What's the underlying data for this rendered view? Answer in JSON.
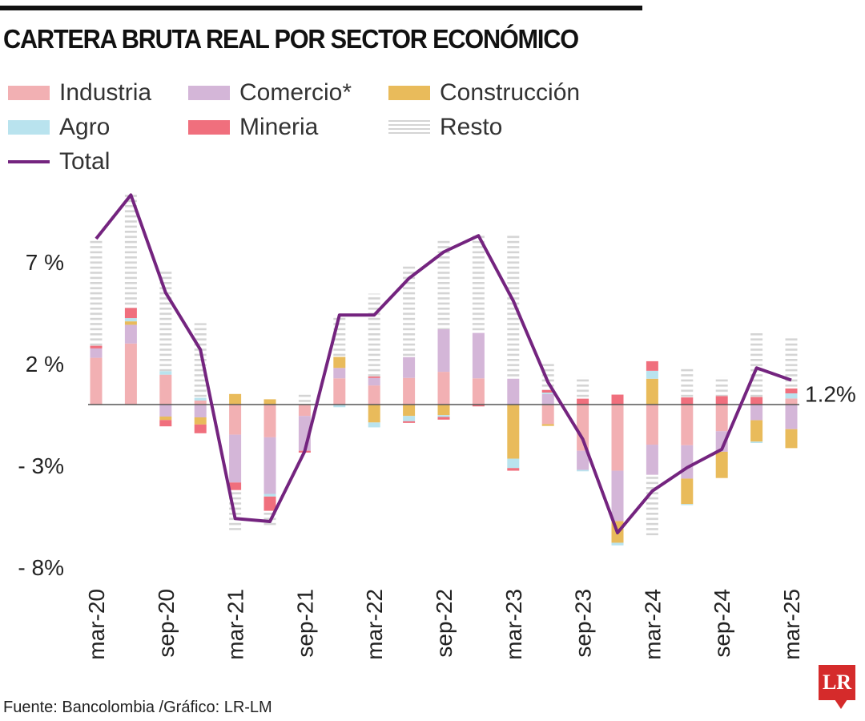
{
  "title": "CARTERA BRUTA REAL POR SECTOR ECONÓMICO",
  "source": "Fuente: Bancolombia /Gráfico: LR-LM",
  "logo_text": "LR",
  "colors": {
    "Industria": "#f2b0b3",
    "Comercio*": "#d4b6d8",
    "Construcción": "#e9bb5b",
    "Agro": "#b9e3ee",
    "Mineria": "#f06f7d",
    "Resto": "#d4d4d4",
    "Total": "#74247f"
  },
  "legend": [
    {
      "label": "Industria",
      "type": "box"
    },
    {
      "label": "Comercio*",
      "type": "box"
    },
    {
      "label": "Construcción",
      "type": "box"
    },
    {
      "label": "Agro",
      "type": "box"
    },
    {
      "label": "Mineria",
      "type": "box"
    },
    {
      "label": "Resto",
      "type": "striped"
    },
    {
      "label": "Total",
      "type": "line"
    }
  ],
  "chart_data": {
    "type": "bar",
    "stacked": true,
    "categories": [
      "mar-20",
      "jun-20",
      "sep-20",
      "dec-20",
      "mar-21",
      "jun-21",
      "sep-21",
      "dec-21",
      "mar-22",
      "jun-22",
      "sep-22",
      "dec-22",
      "mar-23",
      "jun-23",
      "sep-23",
      "dec-23",
      "mar-24",
      "jun-24",
      "sep-24",
      "dec-24",
      "mar-25"
    ],
    "x_tick_labels": [
      "mar-20",
      "sep-20",
      "mar-21",
      "sep-21",
      "mar-22",
      "sep-22",
      "mar-23",
      "sep-23",
      "mar-24",
      "sep-24",
      "mar-25"
    ],
    "y_ticks": [
      {
        "value": 7,
        "label": "7 %"
      },
      {
        "value": 2,
        "label": "2 %"
      },
      {
        "value": -3,
        "label": "- 3%"
      },
      {
        "value": -8,
        "label": "- 8%"
      }
    ],
    "ylim": [
      -8.5,
      10.5
    ],
    "grid": false,
    "legend_position": "top",
    "series": [
      {
        "name": "Industria",
        "values": [
          2.3,
          3.0,
          1.47,
          0.2,
          -1.48,
          -1.61,
          -0.56,
          1.29,
          0.94,
          1.31,
          1.61,
          1.29,
          0,
          -0.96,
          -2.27,
          -3.25,
          -1.97,
          -2.0,
          -1.31,
          0,
          0.3
        ]
      },
      {
        "name": "Comercio*",
        "values": [
          0.46,
          0.92,
          -0.59,
          -0.63,
          -2.35,
          -2.78,
          -1.71,
          0.51,
          0.37,
          1.02,
          2.09,
          2.23,
          1.27,
          0.52,
          -0.94,
          -2.48,
          -1.48,
          -1.64,
          -1.01,
          -0.77,
          -1.21
        ]
      },
      {
        "name": "Construcción",
        "values": [
          0,
          0.17,
          -0.17,
          -0.35,
          0.52,
          0.26,
          0,
          0.54,
          -0.88,
          -0.56,
          -0.52,
          0,
          -2.66,
          -0.09,
          0,
          -1.06,
          1.27,
          -1.25,
          -1.29,
          -1.05,
          -0.93
        ]
      },
      {
        "name": "Agro",
        "values": [
          0,
          0.16,
          0.17,
          0.13,
          0,
          -0.13,
          0,
          -0.13,
          -0.24,
          -0.26,
          -0.09,
          0,
          -0.46,
          0.07,
          -0.07,
          -0.13,
          0.39,
          -0.05,
          0,
          -0.07,
          0.25
        ]
      },
      {
        "name": "Mineria",
        "values": [
          0.13,
          0.5,
          -0.31,
          -0.43,
          -0.37,
          -0.7,
          -0.09,
          0,
          0.07,
          -0.08,
          -0.13,
          -0.09,
          -0.13,
          0.13,
          0.29,
          0.49,
          0.47,
          0.35,
          0.42,
          0.37,
          0.24
        ]
      },
      {
        "name": "Resto",
        "values": [
          5.25,
          5.6,
          4.9,
          3.67,
          -1.97,
          -0.81,
          0.59,
          2.06,
          4.07,
          4.55,
          4.44,
          4.82,
          7.13,
          1.38,
          1.09,
          0.13,
          -2.98,
          1.48,
          0.96,
          3.24,
          2.56
        ]
      },
      {
        "name": "Total",
        "type": "line",
        "values": [
          8.15,
          10.3,
          5.5,
          2.7,
          -5.6,
          -5.75,
          -2.3,
          4.4,
          4.4,
          6.2,
          7.5,
          8.3,
          5.1,
          1.1,
          -1.7,
          -6.3,
          -4.25,
          -3.1,
          -2.2,
          1.8,
          1.2
        ]
      }
    ],
    "annotations": [
      {
        "category": "mar-25",
        "series": "Total",
        "label": "1.2%"
      }
    ]
  }
}
